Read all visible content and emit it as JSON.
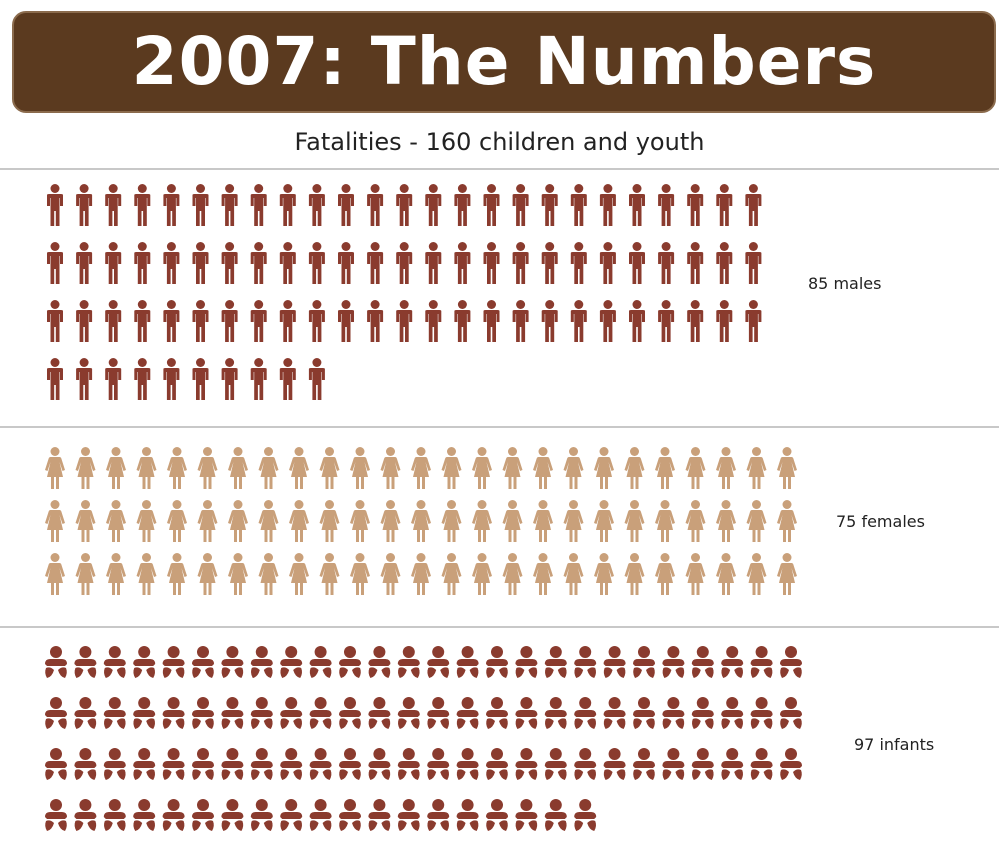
{
  "title": "2007: The Numbers",
  "subtitle": "Fatalities - 160 children and youth",
  "colors": {
    "title_bg": "#5b3a1f",
    "male": "#8a3b2e",
    "female": "#c9a07a",
    "infant": "#8a3b2e"
  },
  "chart_data": {
    "type": "pictograph",
    "title": "Fatalities - 160 children and youth",
    "categories": [
      "males",
      "females",
      "infants"
    ],
    "values": [
      85,
      75,
      97
    ],
    "groups": [
      {
        "label": "85 males",
        "icon": "male-figure-icon",
        "count": 85,
        "per_row": 25
      },
      {
        "label": "75 females",
        "icon": "female-figure-icon",
        "count": 75,
        "per_row": 25
      },
      {
        "label": "97 infants",
        "icon": "infant-figure-icon",
        "count": 97,
        "per_row": 26
      }
    ]
  }
}
